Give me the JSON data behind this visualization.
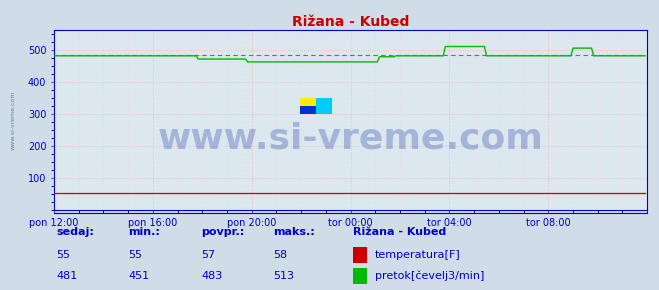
{
  "title": "Rižana - Kubed",
  "bg_color": "#d0dce8",
  "plot_bg_color": "#dce8f0",
  "grid_color_major": "#ffaaaa",
  "grid_color_minor": "#ffcccc",
  "xlim": [
    0,
    288
  ],
  "ylim": [
    0,
    560
  ],
  "yticks": [
    100,
    200,
    300,
    400,
    500
  ],
  "xtick_labels": [
    "pon 12:00",
    "pon 16:00",
    "pon 20:00",
    "tor 00:00",
    "tor 04:00",
    "tor 08:00"
  ],
  "xtick_positions": [
    0,
    48,
    96,
    144,
    192,
    240
  ],
  "title_color": "#cc0000",
  "title_fontsize": 10,
  "tick_color": "#0000cc",
  "tick_fontsize": 7,
  "watermark_text": "www.si-vreme.com",
  "watermark_color": "#2244aa",
  "watermark_alpha": 0.3,
  "watermark_fontsize": 26,
  "temp_color": "#cc0000",
  "flow_color": "#00bb00",
  "flow_avg_color": "#00bb00",
  "temp_value": 55,
  "legend_title": "Rižana - Kubed",
  "legend_items": [
    "temperatura[F]",
    "pretok[čevelj3/min]"
  ],
  "legend_colors": [
    "#cc0000",
    "#00bb00"
  ],
  "table_headers": [
    "sedaj:",
    "min.:",
    "povpr.:",
    "maks.:"
  ],
  "table_temp": [
    55,
    55,
    57,
    58
  ],
  "table_flow": [
    481,
    451,
    483,
    513
  ],
  "table_color": "#0000cc",
  "table_fontsize": 8,
  "spine_color": "#0000cc",
  "arrow_color": "#cc0000",
  "flow_avg": 483,
  "flow_data": [
    481,
    481,
    481,
    481,
    481,
    481,
    481,
    481,
    481,
    481,
    481,
    481,
    481,
    481,
    481,
    481,
    481,
    481,
    481,
    481,
    481,
    481,
    481,
    481,
    481,
    481,
    481,
    481,
    481,
    481,
    481,
    481,
    481,
    481,
    481,
    481,
    481,
    481,
    481,
    481,
    481,
    481,
    481,
    481,
    481,
    481,
    481,
    481,
    481,
    481,
    481,
    481,
    481,
    481,
    481,
    481,
    481,
    481,
    481,
    481,
    481,
    481,
    481,
    481,
    481,
    481,
    481,
    481,
    481,
    481,
    471,
    471,
    471,
    471,
    471,
    471,
    471,
    471,
    471,
    471,
    471,
    471,
    471,
    471,
    471,
    471,
    471,
    471,
    471,
    471,
    471,
    471,
    471,
    471,
    462,
    462,
    462,
    462,
    462,
    462,
    462,
    462,
    462,
    462,
    462,
    462,
    462,
    462,
    462,
    462,
    462,
    462,
    462,
    462,
    462,
    462,
    462,
    462,
    462,
    462,
    462,
    462,
    462,
    462,
    462,
    462,
    462,
    462,
    462,
    462,
    462,
    462,
    462,
    462,
    462,
    462,
    462,
    462,
    462,
    462,
    462,
    462,
    462,
    462,
    462,
    462,
    462,
    462,
    462,
    462,
    462,
    462,
    462,
    462,
    462,
    462,
    462,
    462,
    478,
    478,
    478,
    478,
    478,
    478,
    478,
    478,
    481,
    481,
    481,
    481,
    481,
    481,
    481,
    481,
    481,
    481,
    481,
    481,
    481,
    481,
    481,
    481,
    481,
    481,
    481,
    481,
    481,
    481,
    481,
    481,
    510,
    510,
    510,
    510,
    510,
    510,
    510,
    510,
    510,
    510,
    510,
    510,
    510,
    510,
    510,
    510,
    510,
    510,
    510,
    510,
    481,
    481,
    481,
    481,
    481,
    481,
    481,
    481,
    481,
    481,
    481,
    481,
    481,
    481,
    481,
    481,
    481,
    481,
    481,
    481,
    481,
    481,
    481,
    481,
    481,
    481,
    481,
    481,
    481,
    481,
    481,
    481,
    481,
    481,
    481,
    481,
    481,
    481,
    481,
    481,
    481,
    481,
    505,
    505,
    505,
    505,
    505,
    505,
    505,
    505,
    505,
    505,
    481,
    481,
    481,
    481,
    481,
    481,
    481,
    481,
    481,
    481,
    481,
    481,
    481,
    481,
    481,
    481,
    481,
    481,
    481,
    481,
    481,
    481,
    481,
    481,
    481,
    481,
    481
  ]
}
